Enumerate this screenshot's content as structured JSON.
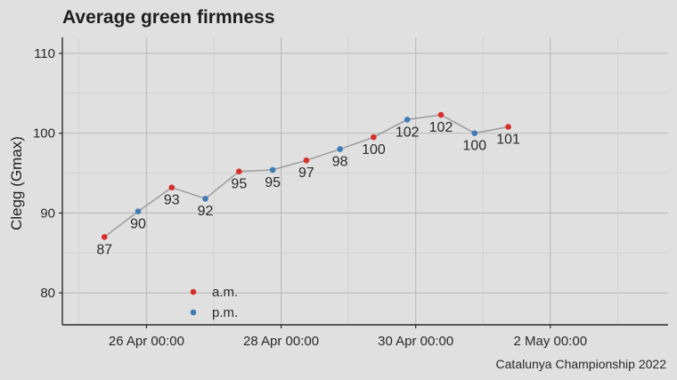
{
  "chart_data": {
    "type": "line",
    "title": "Average green firmness",
    "subtitle": "",
    "xlabel": "",
    "ylabel": "Clegg (Gmax)",
    "caption": "Catalunya Championship 2022",
    "ylim": [
      76,
      112
    ],
    "yticks": [
      80,
      90,
      100,
      110
    ],
    "xlim": [
      "2022-04-24T18:00",
      "2022-05-03T18:00"
    ],
    "xticks": [
      {
        "t": "2022-04-26T00:00",
        "label": "26 Apr 00:00"
      },
      {
        "t": "2022-04-28T00:00",
        "label": "28 Apr 00:00"
      },
      {
        "t": "2022-04-30T00:00",
        "label": "30 Apr 00:00"
      },
      {
        "t": "2022-05-02T00:00",
        "label": "2 May 00:00"
      }
    ],
    "grid": true,
    "legend_position": "bottom-left",
    "series": [
      {
        "name": "a.m.",
        "color": "#d7302b"
      },
      {
        "name": "p.m.",
        "color": "#3f7cb5"
      }
    ],
    "line_color": "#9b9b9b",
    "points": [
      {
        "t": "2022-04-25T09:00",
        "value": 87,
        "series": "a.m.",
        "label": "87"
      },
      {
        "t": "2022-04-25T21:00",
        "value": 90.2,
        "series": "p.m.",
        "label": "90"
      },
      {
        "t": "2022-04-26T09:00",
        "value": 93.2,
        "series": "a.m.",
        "label": "93"
      },
      {
        "t": "2022-04-26T21:00",
        "value": 91.8,
        "series": "p.m.",
        "label": "92"
      },
      {
        "t": "2022-04-27T09:00",
        "value": 95.2,
        "series": "a.m.",
        "label": "95"
      },
      {
        "t": "2022-04-27T21:00",
        "value": 95.4,
        "series": "p.m.",
        "label": "95"
      },
      {
        "t": "2022-04-28T09:00",
        "value": 96.6,
        "series": "a.m.",
        "label": "97"
      },
      {
        "t": "2022-04-28T21:00",
        "value": 98,
        "series": "p.m.",
        "label": "98"
      },
      {
        "t": "2022-04-29T09:00",
        "value": 99.5,
        "series": "a.m.",
        "label": "100"
      },
      {
        "t": "2022-04-29T21:00",
        "value": 101.7,
        "series": "p.m.",
        "label": "102"
      },
      {
        "t": "2022-04-30T09:00",
        "value": 102.3,
        "series": "a.m.",
        "label": "102"
      },
      {
        "t": "2022-04-30T21:00",
        "value": 100,
        "series": "p.m.",
        "label": "100"
      },
      {
        "t": "2022-05-01T09:00",
        "value": 100.8,
        "series": "a.m.",
        "label": "101"
      }
    ]
  }
}
